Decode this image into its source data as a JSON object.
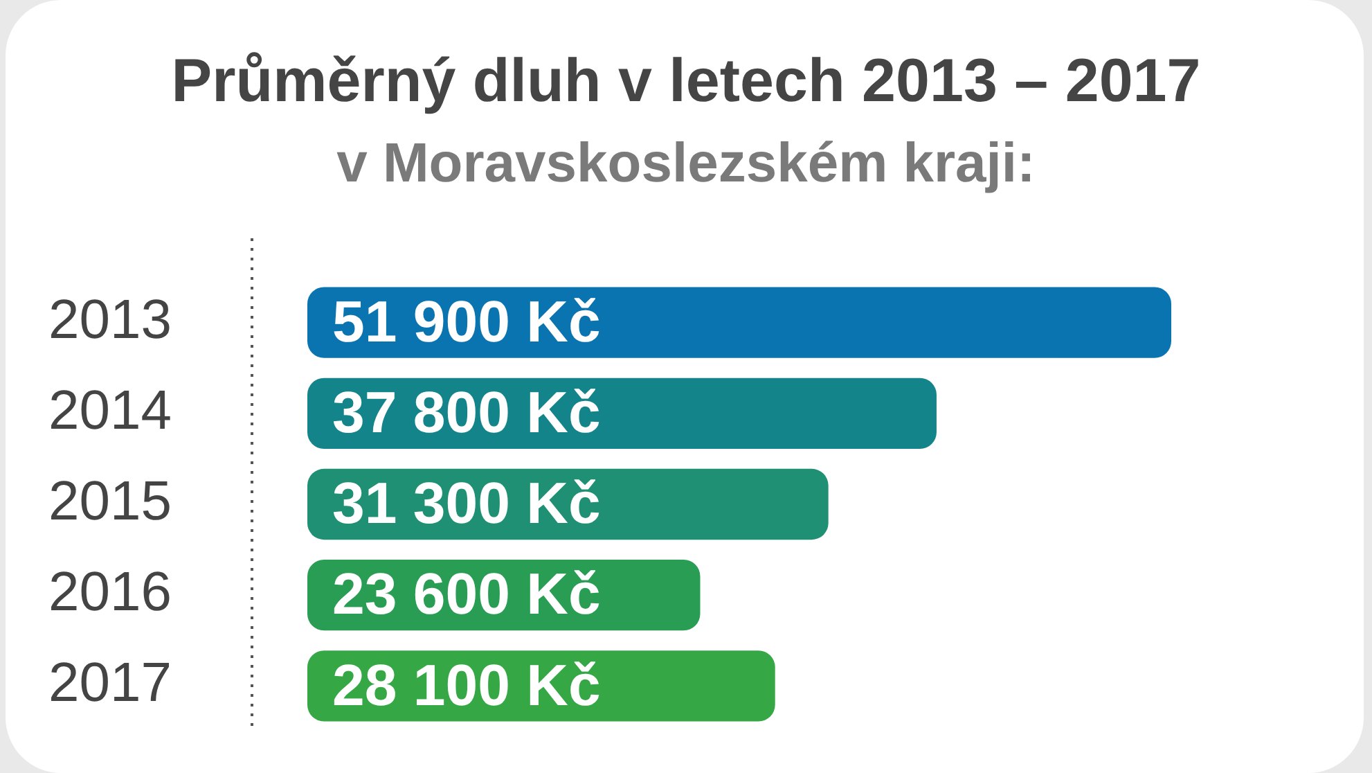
{
  "chart_data": {
    "type": "bar",
    "orientation": "horizontal",
    "title": "Průměrný dluh v letech 2013 – 2017",
    "subtitle": "v Moravskoslezském kraji:",
    "categories": [
      "2013",
      "2014",
      "2015",
      "2016",
      "2017"
    ],
    "values": [
      51900,
      37800,
      31300,
      23600,
      28100
    ],
    "colors": [
      "#0a74b0",
      "#13858a",
      "#1f9073",
      "#2a9d55",
      "#35a845"
    ],
    "value_labels": [
      "51 900 Kč",
      "37 800 Kč",
      "31 300 Kč",
      "23 600 Kč",
      "28 100 Kč"
    ]
  }
}
